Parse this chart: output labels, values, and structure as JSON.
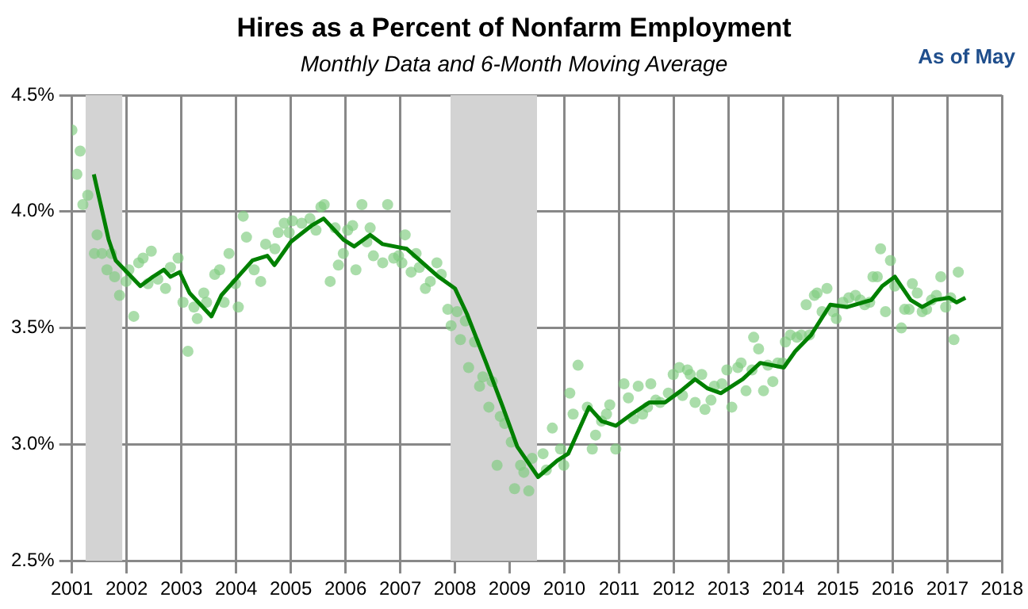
{
  "chart_data": {
    "type": "scatter",
    "title": "Hires as a Percent of Nonfarm Employment",
    "subtitle": "Monthly Data and 6-Month Moving Average",
    "annotations": [
      "As of May"
    ],
    "series": [
      {
        "type": "scatter",
        "marker": "circle",
        "color": "#80cc80",
        "x": [
          2001.0,
          2001.09,
          2001.15,
          2001.2,
          2001.29,
          2001.41,
          2001.46,
          2001.55,
          2001.64,
          2001.72,
          2001.78,
          2001.87,
          2001.99,
          2002.04,
          2002.13,
          2002.22,
          2002.3,
          2002.39,
          2002.45,
          2002.57,
          2002.71,
          2002.8,
          2002.94,
          2003.03,
          2003.12,
          2003.23,
          2003.29,
          2003.41,
          2003.46,
          2003.61,
          2003.7,
          2003.78,
          2003.87,
          2003.99,
          2004.04,
          2004.13,
          2004.19,
          2004.33,
          2004.45,
          2004.54,
          2004.71,
          2004.77,
          2004.88,
          2004.97,
          2005.03,
          2005.2,
          2005.35,
          2005.46,
          2005.55,
          2005.61,
          2005.72,
          2005.81,
          2005.87,
          2005.96,
          2006.04,
          2006.13,
          2006.19,
          2006.3,
          2006.39,
          2006.45,
          2006.51,
          2006.68,
          2006.77,
          2006.88,
          2006.97,
          2007.03,
          2007.09,
          2007.2,
          2007.29,
          2007.35,
          2007.46,
          2007.55,
          2007.67,
          2007.75,
          2007.87,
          2007.93,
          2008.04,
          2008.1,
          2008.19,
          2008.25,
          2008.36,
          2008.45,
          2008.51,
          2008.62,
          2008.68,
          2008.77,
          2008.83,
          2008.91,
          2009.03,
          2009.09,
          2009.2,
          2009.26,
          2009.35,
          2009.41,
          2009.61,
          2009.67,
          2009.78,
          2009.93,
          2009.99,
          2010.1,
          2010.16,
          2010.25,
          2010.42,
          2010.51,
          2010.57,
          2010.68,
          2010.77,
          2010.83,
          2010.94,
          2011.09,
          2011.17,
          2011.26,
          2011.35,
          2011.43,
          2011.52,
          2011.58,
          2011.67,
          2011.75,
          2011.9,
          2011.99,
          2012.1,
          2012.16,
          2012.25,
          2012.3,
          2012.39,
          2012.51,
          2012.57,
          2012.68,
          2012.74,
          2012.88,
          2012.97,
          2013.06,
          2013.17,
          2013.23,
          2013.32,
          2013.43,
          2013.46,
          2013.55,
          2013.64,
          2013.72,
          2013.81,
          2013.9,
          2013.99,
          2014.04,
          2014.13,
          2014.25,
          2014.33,
          2014.42,
          2014.48,
          2014.57,
          2014.62,
          2014.71,
          2014.8,
          2014.91,
          2014.97,
          2015.09,
          2015.2,
          2015.32,
          2015.41,
          2015.49,
          2015.58,
          2015.64,
          2015.72,
          2015.78,
          2015.87,
          2015.96,
          2016.04,
          2016.16,
          2016.22,
          2016.3,
          2016.36,
          2016.45,
          2016.54,
          2016.62,
          2016.71,
          2016.8,
          2016.88,
          2016.97,
          2017.06,
          2017.12,
          2017.2
        ],
        "values": [
          4.35,
          4.16,
          4.26,
          4.03,
          4.07,
          3.82,
          3.9,
          3.82,
          3.75,
          3.82,
          3.72,
          3.64,
          3.7,
          3.75,
          3.55,
          3.78,
          3.8,
          3.69,
          3.83,
          3.71,
          3.67,
          3.76,
          3.8,
          3.61,
          3.4,
          3.59,
          3.54,
          3.65,
          3.61,
          3.73,
          3.75,
          3.61,
          3.82,
          3.69,
          3.59,
          3.98,
          3.89,
          3.75,
          3.7,
          3.86,
          3.84,
          3.91,
          3.95,
          3.91,
          3.96,
          3.95,
          3.97,
          3.92,
          4.02,
          4.03,
          3.7,
          3.93,
          3.77,
          3.82,
          3.92,
          3.94,
          3.75,
          4.03,
          3.87,
          3.93,
          3.81,
          3.78,
          4.03,
          3.8,
          3.81,
          3.78,
          3.9,
          3.74,
          3.82,
          3.76,
          3.67,
          3.7,
          3.78,
          3.73,
          3.58,
          3.51,
          3.57,
          3.45,
          3.53,
          3.33,
          3.44,
          3.25,
          3.29,
          3.16,
          3.27,
          2.91,
          3.12,
          3.09,
          3.01,
          2.81,
          2.91,
          2.88,
          2.8,
          2.94,
          2.96,
          2.89,
          3.07,
          2.98,
          2.91,
          3.22,
          3.13,
          3.34,
          3.16,
          2.98,
          3.04,
          3.1,
          3.13,
          3.17,
          2.98,
          3.26,
          3.2,
          3.11,
          3.25,
          3.13,
          3.16,
          3.26,
          3.19,
          3.18,
          3.22,
          3.3,
          3.33,
          3.21,
          3.32,
          3.3,
          3.18,
          3.3,
          3.15,
          3.19,
          3.25,
          3.26,
          3.32,
          3.16,
          3.33,
          3.35,
          3.23,
          3.32,
          3.46,
          3.41,
          3.23,
          3.34,
          3.27,
          3.35,
          3.35,
          3.44,
          3.47,
          3.46,
          3.47,
          3.6,
          3.47,
          3.64,
          3.65,
          3.57,
          3.67,
          3.57,
          3.54,
          3.61,
          3.63,
          3.64,
          3.62,
          3.6,
          3.61,
          3.72,
          3.72,
          3.84,
          3.57,
          3.79,
          3.68,
          3.5,
          3.58,
          3.58,
          3.69,
          3.65,
          3.57,
          3.58,
          3.62,
          3.64,
          3.72,
          3.59,
          3.63,
          3.45,
          3.74
        ]
      },
      {
        "type": "line",
        "marker": "none",
        "line_style": "solid",
        "color": "#008000",
        "x": [
          2001.4,
          2001.67,
          2001.8,
          2002.25,
          2002.48,
          2002.68,
          2002.8,
          2002.97,
          2003.15,
          2003.55,
          2003.73,
          2004.3,
          2004.57,
          2004.7,
          2005.0,
          2005.38,
          2005.6,
          2005.96,
          2006.16,
          2006.45,
          2006.68,
          2007.12,
          2007.7,
          2008.0,
          2008.22,
          2008.57,
          2008.86,
          2009.14,
          2009.52,
          2009.72,
          2009.87,
          2010.07,
          2010.45,
          2010.68,
          2010.94,
          2011.23,
          2011.55,
          2011.84,
          2012.13,
          2012.39,
          2012.62,
          2012.86,
          2013.26,
          2013.58,
          2014.01,
          2014.22,
          2014.51,
          2014.86,
          2015.17,
          2015.61,
          2015.81,
          2016.04,
          2016.33,
          2016.54,
          2016.77,
          2017.03,
          2017.17,
          2017.33
        ],
        "values": [
          4.16,
          3.88,
          3.79,
          3.68,
          3.72,
          3.75,
          3.72,
          3.74,
          3.65,
          3.55,
          3.64,
          3.79,
          3.81,
          3.77,
          3.87,
          3.94,
          3.97,
          3.88,
          3.85,
          3.9,
          3.86,
          3.84,
          3.72,
          3.67,
          3.56,
          3.35,
          3.17,
          2.99,
          2.86,
          2.9,
          2.93,
          2.96,
          3.16,
          3.1,
          3.08,
          3.13,
          3.18,
          3.18,
          3.23,
          3.28,
          3.24,
          3.22,
          3.28,
          3.35,
          3.33,
          3.4,
          3.47,
          3.6,
          3.59,
          3.62,
          3.68,
          3.72,
          3.62,
          3.59,
          3.62,
          3.63,
          3.61,
          3.63
        ]
      }
    ],
    "xlim": [
      2001,
      2018
    ],
    "xticks": [
      2001,
      2002,
      2003,
      2004,
      2005,
      2006,
      2007,
      2008,
      2009,
      2010,
      2011,
      2012,
      2013,
      2014,
      2015,
      2016,
      2017,
      2018
    ],
    "ylim": [
      2.5,
      4.5
    ],
    "yticks": [
      {
        "value": 2.5,
        "label": "2.5%"
      },
      {
        "value": 3.0,
        "label": "3.0%"
      },
      {
        "value": 3.5,
        "label": "3.5%"
      },
      {
        "value": 4.0,
        "label": "4.0%"
      },
      {
        "value": 4.5,
        "label": "4.5%"
      }
    ],
    "bands": [
      {
        "axis": "x",
        "from": 2001.25,
        "to": 2001.92,
        "color": "#d3d3d3"
      },
      {
        "axis": "x",
        "from": 2007.92,
        "to": 2009.5,
        "color": "#d3d3d3"
      }
    ],
    "grid": true
  }
}
